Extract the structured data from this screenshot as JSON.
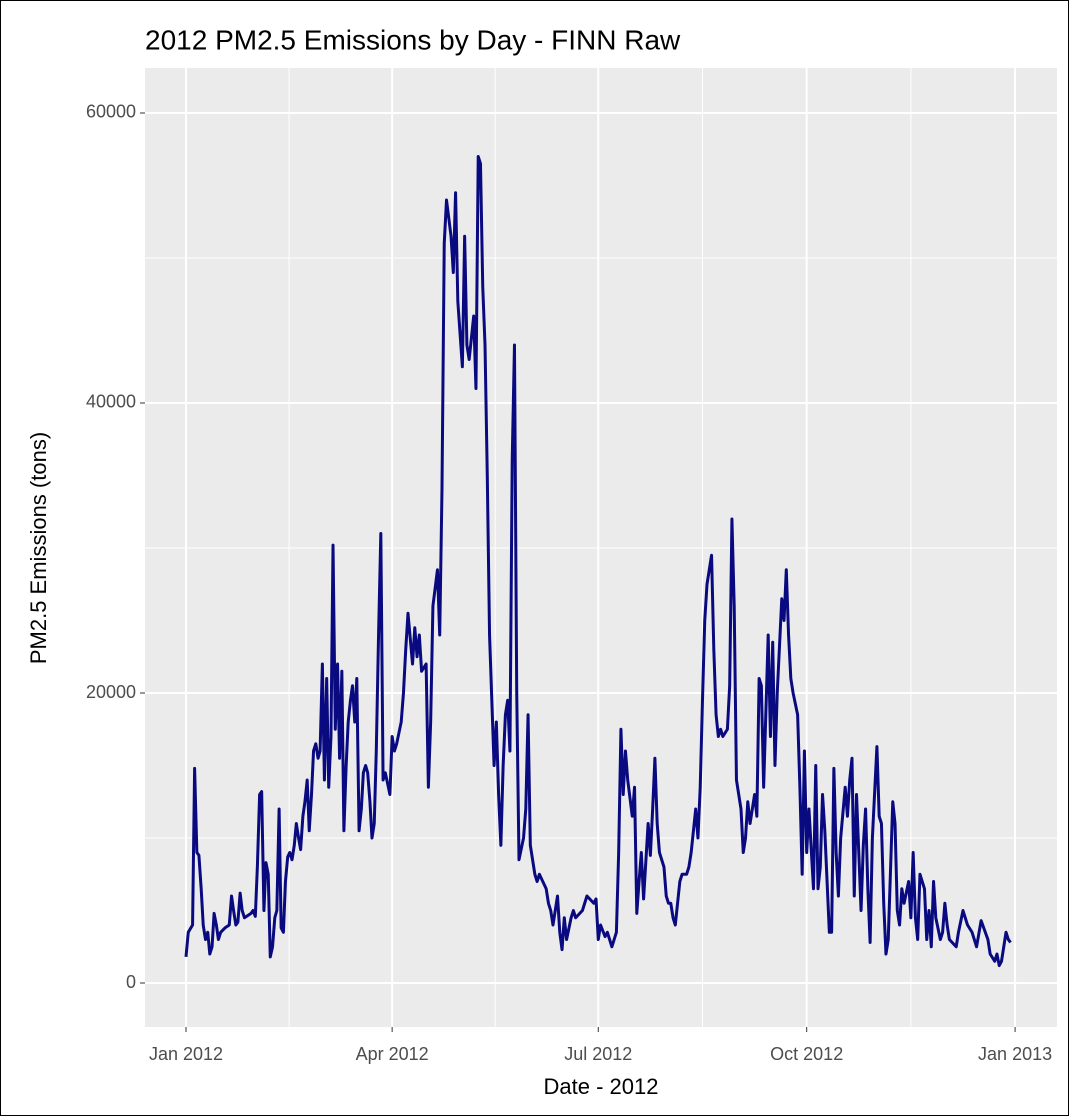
{
  "chart_data": {
    "type": "line",
    "title": "2012 PM2.5 Emissions by Day - FINN Raw",
    "x_label": "Date - 2012",
    "y_label": "PM2.5 Emissions (tons)",
    "xlim": [
      -18.1,
      384.5
    ],
    "ylim": [
      -3034,
      63103
    ],
    "xticks": [
      {
        "value": 0,
        "label": "Jan 2012"
      },
      {
        "value": 91,
        "label": "Apr 2012"
      },
      {
        "value": 182,
        "label": "Jul 2012"
      },
      {
        "value": 274,
        "label": "Oct 2012"
      },
      {
        "value": 366,
        "label": "Jan 2013"
      }
    ],
    "yticks": [
      0,
      20000,
      40000,
      60000
    ],
    "grid": true,
    "x": [
      0,
      1.0,
      2.9,
      3.8,
      4.8,
      5.7,
      6.7,
      7.6,
      8.6,
      9.6,
      10.5,
      11.5,
      12.4,
      13.4,
      14.3,
      15.3,
      17.2,
      19.1,
      20.1,
      21.0,
      22.0,
      22.9,
      23.9,
      24.8,
      25.8,
      28.7,
      29.6,
      30.6,
      31.5,
      32.5,
      33.4,
      34.4,
      35.3,
      36.3,
      37.2,
      38.2,
      39.2,
      40.1,
      41.1,
      42.0,
      43.0,
      43.9,
      44.9,
      45.8,
      46.8,
      47.8,
      48.7,
      49.7,
      50.6,
      51.6,
      52.5,
      53.5,
      54.4,
      55.4,
      56.3,
      57.3,
      58.3,
      59.2,
      60.2,
      61.1,
      62.1,
      63.0,
      64.0,
      64.9,
      65.9,
      66.9,
      67.8,
      68.8,
      69.7,
      70.7,
      71.6,
      72.6,
      73.5,
      74.5,
      75.4,
      76.4,
      77.4,
      78.3,
      79.3,
      80.2,
      81.2,
      82.1,
      83.1,
      84.0,
      85.0,
      86.0,
      87,
      88,
      90,
      91,
      92,
      93,
      95,
      96,
      97,
      98,
      100,
      101,
      102,
      103,
      104,
      106,
      107,
      108,
      109,
      111,
      112,
      113,
      114,
      115,
      117,
      118,
      119,
      120,
      122,
      123,
      124,
      125,
      127,
      128,
      129,
      130,
      131,
      132,
      133,
      134,
      135,
      136,
      137,
      138,
      139,
      140,
      141,
      142,
      143,
      144,
      145,
      146,
      147,
      149,
      150,
      151,
      152,
      154,
      155,
      156,
      159,
      160,
      161,
      162,
      164,
      165,
      166,
      167,
      168,
      170,
      171,
      172,
      175,
      177,
      180,
      181,
      182,
      183,
      185,
      186,
      187,
      188,
      190,
      191,
      192,
      193,
      194,
      195,
      197,
      198,
      199,
      200,
      201,
      202,
      204,
      205,
      206,
      207,
      208,
      209,
      211,
      212,
      213,
      214,
      215,
      216,
      218,
      219,
      221,
      222,
      223,
      225,
      226,
      227,
      228,
      229,
      230,
      232,
      233,
      234,
      235,
      236,
      237,
      239,
      240,
      241,
      242,
      243,
      245,
      246,
      247,
      248,
      249,
      251,
      252,
      253,
      254,
      255,
      257,
      258,
      259,
      260,
      261,
      263,
      264,
      265,
      266,
      267,
      268,
      270,
      271,
      272,
      273,
      274,
      275,
      277,
      278,
      279,
      280,
      281,
      282,
      284,
      285,
      286,
      287,
      288,
      289,
      291,
      292,
      293,
      294,
      295,
      296,
      298,
      299,
      300,
      301,
      302,
      303,
      305,
      306,
      307,
      308,
      309,
      310,
      312,
      313,
      314,
      315,
      316,
      317,
      319,
      320,
      321,
      322,
      323,
      324,
      326,
      327,
      328,
      329,
      330,
      331,
      333,
      334,
      335,
      336,
      337,
      340,
      341,
      343,
      345,
      347,
      349,
      351,
      354,
      355,
      357,
      358,
      359,
      360,
      362,
      363,
      364
    ],
    "series": [
      {
        "name": "PM2.5",
        "color": "#0a0a80",
        "values": [
          1800,
          3500,
          4000,
          14800,
          9000,
          8800,
          6500,
          4000,
          3000,
          3500,
          2000,
          2500,
          4800,
          4000,
          3000,
          3500,
          3800,
          4000,
          6000,
          5000,
          4000,
          4200,
          6200,
          5000,
          4500,
          4800,
          5000,
          4600,
          8000,
          13000,
          13200,
          5000,
          8300,
          7500,
          1800,
          2500,
          4500,
          5000,
          12000,
          3800,
          3500,
          7000,
          8700,
          9000,
          8500,
          9500,
          11000,
          10000,
          9200,
          11500,
          12500,
          14000,
          10500,
          13000,
          16000,
          16500,
          15500,
          16000,
          22000,
          14000,
          21000,
          13500,
          17000,
          30200,
          17500,
          22000,
          15500,
          21500,
          10500,
          15000,
          18000,
          19500,
          20500,
          18000,
          21000,
          10500,
          12000,
          14500,
          15000,
          14500,
          12500,
          10000,
          11000,
          16000,
          24000,
          31000,
          14000,
          14500,
          13000,
          17000,
          16000,
          16500,
          18000,
          20000,
          23000,
          25500,
          22000,
          24500,
          22500,
          24000,
          21500,
          22000,
          13500,
          18000,
          26000,
          28500,
          24000,
          34000,
          51000,
          54000,
          51500,
          49000,
          54500,
          47000,
          42500,
          51500,
          44000,
          43000,
          46000,
          41000,
          57000,
          56500,
          48000,
          44000,
          35000,
          24000,
          19500,
          15000,
          18000,
          13000,
          9500,
          15000,
          18500,
          19500,
          16000,
          36000,
          44000,
          20000,
          8500,
          10000,
          12000,
          18500,
          9500,
          7500,
          7000,
          7500,
          6500,
          5500,
          5000,
          4000,
          6000,
          3500,
          2300,
          4500,
          3000,
          4500,
          5000,
          4500,
          5000,
          6000,
          5500,
          5800,
          3000,
          4000,
          3200,
          3500,
          3000,
          2500,
          3500,
          9000,
          17500,
          13000,
          16000,
          14000,
          11500,
          13500,
          4800,
          7000,
          9000,
          5800,
          11000,
          8800,
          12000,
          15500,
          11000,
          9000,
          8000,
          6000,
          5500,
          5500,
          4500,
          4000,
          7000,
          7500,
          7500,
          8000,
          9000,
          12000,
          10000,
          13500,
          19500,
          25000,
          27500,
          29500,
          23000,
          18500,
          17000,
          17500,
          17000,
          17500,
          20500,
          32000,
          26000,
          14000,
          12000,
          9000,
          10000,
          12500,
          11000,
          13000,
          11500,
          21000,
          20500,
          13500,
          24000,
          17000,
          23500,
          15000,
          20000,
          26500,
          25000,
          28500,
          24000,
          21000,
          20000,
          18500,
          13500,
          7500,
          16000,
          9000,
          12000,
          6500,
          15000,
          6500,
          8000,
          13000,
          10500,
          3500,
          3500,
          14800,
          9000,
          6000,
          10000,
          13500,
          11500,
          14000,
          15500,
          6000,
          13000,
          5000,
          9500,
          12000,
          6500,
          2800,
          10000,
          16300,
          11500,
          11000,
          5500,
          2000,
          3000,
          12500,
          11000,
          5000,
          4000,
          6500,
          5500,
          7000,
          4500,
          9000,
          4500,
          3000,
          7500,
          6500,
          3000,
          5000,
          2500,
          7000,
          4500,
          3000,
          3500,
          5500,
          4000,
          3000,
          2500,
          3500,
          5000,
          4000,
          3500,
          2500,
          4300,
          3000,
          2000,
          1500,
          2000,
          1200,
          1500,
          3500,
          3000,
          2800
        ]
      }
    ]
  }
}
